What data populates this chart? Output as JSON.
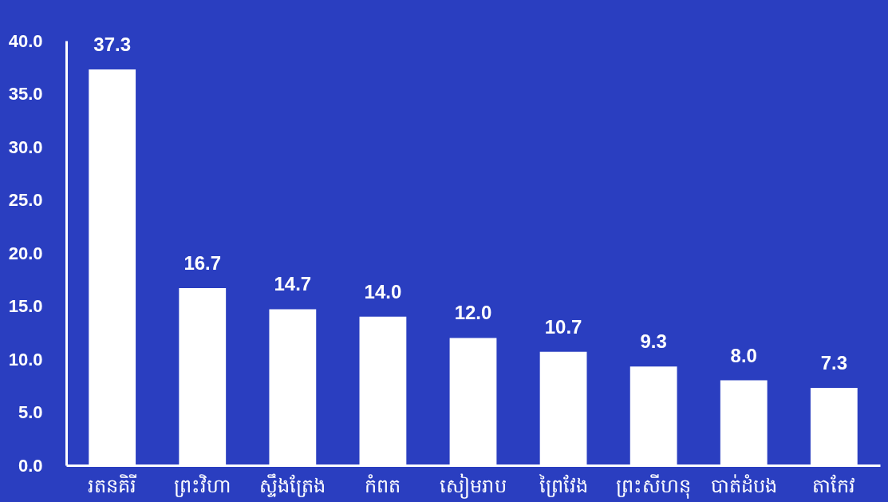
{
  "chart_data": {
    "type": "bar",
    "categories": [
      "រតនគិរី",
      "ព្រះវិហា",
      "ស្ទឹងត្រែង",
      "កំពត",
      "សៀមរាប",
      "ព្រៃវែង",
      "ព្រះសីហនុ",
      "បាត់ដំបង",
      "តាកែវ"
    ],
    "values": [
      37.3,
      16.7,
      14.7,
      14.0,
      12.0,
      10.7,
      9.3,
      8.0,
      7.3
    ],
    "value_labels": [
      "37.3",
      "16.7",
      "14.7",
      "14.0",
      "12.0",
      "10.7",
      "9.3",
      "8.0",
      "7.3"
    ],
    "color": "#ffffff",
    "ylim": [
      0,
      40
    ],
    "yticks": [
      {
        "value": 0,
        "label": "0.0"
      },
      {
        "value": 5,
        "label": "5.0"
      },
      {
        "value": 10,
        "label": "10.0"
      },
      {
        "value": 15,
        "label": "15.0"
      },
      {
        "value": 20,
        "label": "20.0"
      },
      {
        "value": 25,
        "label": "25.0"
      },
      {
        "value": 30,
        "label": "30.0"
      },
      {
        "value": 35,
        "label": "35.0"
      },
      {
        "value": 40,
        "label": "40.0"
      }
    ],
    "grid": false
  }
}
